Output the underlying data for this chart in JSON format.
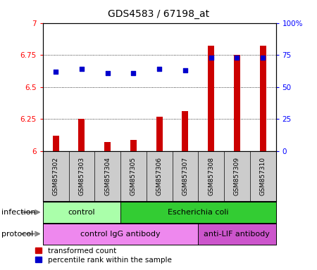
{
  "title": "GDS4583 / 67198_at",
  "samples": [
    "GSM857302",
    "GSM857303",
    "GSM857304",
    "GSM857305",
    "GSM857306",
    "GSM857307",
    "GSM857308",
    "GSM857309",
    "GSM857310"
  ],
  "red_values": [
    6.12,
    6.25,
    6.07,
    6.09,
    6.27,
    6.31,
    6.82,
    6.75,
    6.82
  ],
  "blue_values": [
    62,
    64,
    61,
    61,
    64,
    63,
    73,
    73,
    73
  ],
  "ylim_left": [
    6.0,
    7.0
  ],
  "ylim_right": [
    0,
    100
  ],
  "yticks_left": [
    6.0,
    6.25,
    6.5,
    6.75,
    7.0
  ],
  "yticks_right": [
    0,
    25,
    50,
    75,
    100
  ],
  "ytick_labels_left": [
    "6",
    "6.25",
    "6.5",
    "6.75",
    "7"
  ],
  "ytick_labels_right": [
    "0",
    "25",
    "50",
    "75",
    "100%"
  ],
  "infection_labels": [
    {
      "text": "control",
      "start": 0,
      "end": 3,
      "color": "#AAFFAA"
    },
    {
      "text": "Escherichia coli",
      "start": 3,
      "end": 9,
      "color": "#33CC33"
    }
  ],
  "protocol_labels": [
    {
      "text": "control IgG antibody",
      "start": 0,
      "end": 6,
      "color": "#EE88EE"
    },
    {
      "text": "anti-LIF antibody",
      "start": 6,
      "end": 9,
      "color": "#CC55CC"
    }
  ],
  "bar_color": "#CC0000",
  "dot_color": "#0000CC",
  "bar_width": 0.25,
  "dot_size": 25,
  "infection_row_label": "infection",
  "protocol_row_label": "protocol",
  "legend_red": "transformed count",
  "legend_blue": "percentile rank within the sample",
  "label_bg_color": "#CCCCCC",
  "grid_linestyle": "dotted"
}
